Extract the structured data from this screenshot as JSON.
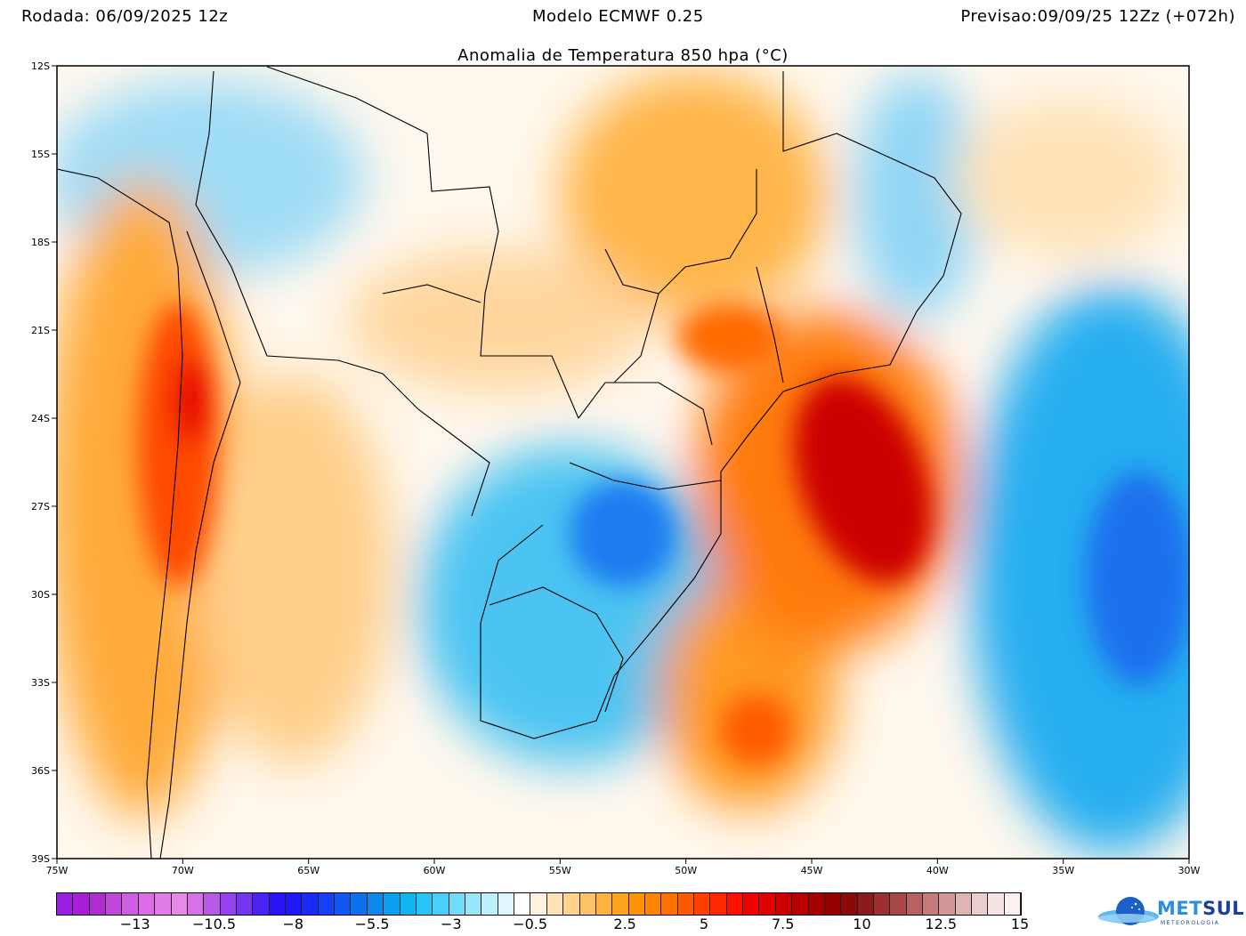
{
  "header": {
    "run": "Rodada: 06/09/2025 12z",
    "model": "Modelo ECMWF 0.25",
    "forecast": "Previsao:09/09/25 12Zz (+072h)"
  },
  "title": "Anomalia de Temperatura 850 hpa (°C)",
  "axes": {
    "lat_ticks": [
      "12S",
      "15S",
      "18S",
      "21S",
      "24S",
      "27S",
      "30S",
      "33S",
      "36S",
      "39S"
    ],
    "lon_ticks": [
      "75W",
      "70W",
      "65W",
      "60W",
      "55W",
      "50W",
      "45W",
      "40W",
      "35W",
      "30W"
    ]
  },
  "colorbar": {
    "labels": [
      "−13",
      "−10.5",
      "−8",
      "−5.5",
      "−3",
      "−0.5",
      "2.5",
      "5",
      "7.5",
      "10",
      "12.5",
      "15"
    ],
    "label_values": [
      -13,
      -10.5,
      -8,
      -5.5,
      -3,
      -0.5,
      2.5,
      5,
      7.5,
      10,
      12.5,
      15
    ],
    "range": [
      -15.5,
      15
    ],
    "colors": [
      "#9b1fe0",
      "#a61fd8",
      "#b02bd0",
      "#c045d8",
      "#cf5fe0",
      "#db6ee4",
      "#e07ce8",
      "#e58ae8",
      "#d672e6",
      "#b85ae8",
      "#9444ee",
      "#7236f0",
      "#4c22f4",
      "#2a14f6",
      "#1f18f8",
      "#1a2af8",
      "#1640f4",
      "#1258f0",
      "#0f70ee",
      "#0c88ec",
      "#0aa0ee",
      "#10b6f2",
      "#28c4f4",
      "#48d0f6",
      "#70dcf8",
      "#98e6fa",
      "#bdeffc",
      "#dff6fd",
      "#ffffff",
      "#fff3e0",
      "#ffe3b8",
      "#ffd28f",
      "#ffc266",
      "#ffb240",
      "#ffa31c",
      "#ff9400",
      "#ff8400",
      "#ff7000",
      "#ff5a00",
      "#ff4000",
      "#ff2800",
      "#ff1000",
      "#f00000",
      "#e00000",
      "#cc0000",
      "#b80000",
      "#a60000",
      "#960000",
      "#8a0a0a",
      "#8c1c1c",
      "#9a3030",
      "#a84848",
      "#b66262",
      "#c47c7c",
      "#d29898",
      "#dfb4b4",
      "#ebcece",
      "#f6e4e4",
      "#fdf0f0"
    ]
  },
  "logo": {
    "text_a": "MET",
    "text_b": "SUL",
    "subtitle": "METEOROLOGIA"
  }
}
